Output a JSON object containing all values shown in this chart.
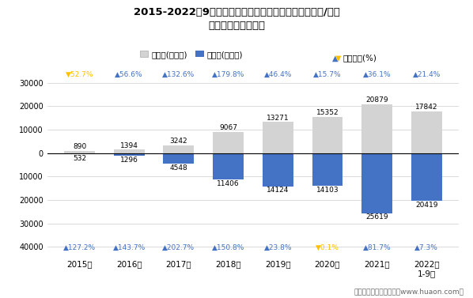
{
  "title_line1": "2015-2022年9月青岛高新技术产业开发区（境内目的地/货源",
  "title_line2": "地）进、出口额统计",
  "years": [
    "2015年",
    "2016年",
    "2017年",
    "2018年",
    "2019年",
    "2020年",
    "2021年",
    "2022年\n1-9月"
  ],
  "export": [
    890,
    1394,
    3242,
    9067,
    13271,
    15352,
    20879,
    17842
  ],
  "import_vals": [
    532,
    1296,
    4548,
    11406,
    14124,
    14103,
    25619,
    20419
  ],
  "export_growth": [
    52.7,
    56.6,
    132.6,
    179.8,
    46.4,
    15.7,
    36.1,
    21.4
  ],
  "import_growth": [
    127.2,
    143.7,
    202.7,
    150.8,
    23.8,
    0.1,
    81.7,
    7.3
  ],
  "export_growth_up": [
    false,
    true,
    true,
    true,
    true,
    true,
    true,
    true
  ],
  "import_growth_up": [
    true,
    true,
    true,
    true,
    true,
    false,
    true,
    true
  ],
  "export_color": "#d3d3d3",
  "import_color": "#4472c4",
  "growth_up_color": "#4472c4",
  "growth_down_color": "#ffc000",
  "legend_export": "出口额(万美元)",
  "legend_import": "进口额(万美元)",
  "legend_growth": "▲▼同比增长(%)",
  "footer": "制图：华经产业研究院（www.huaon.com）"
}
